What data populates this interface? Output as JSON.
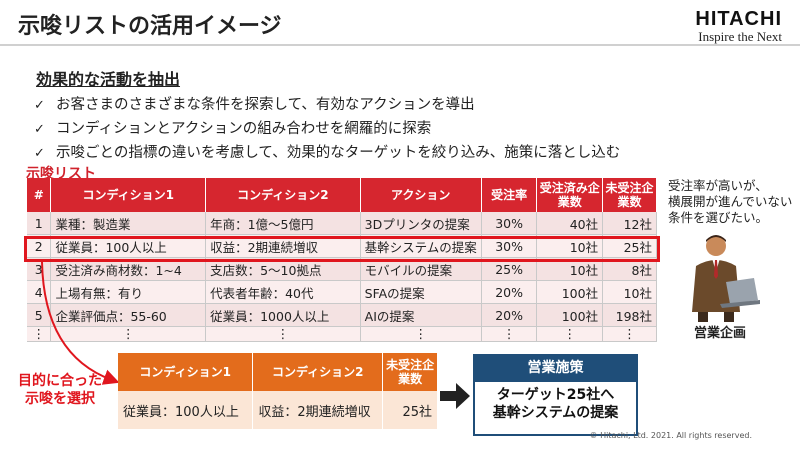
{
  "header": {
    "title": "示唆リストの活用イメージ",
    "logo_brand": "HITACHI",
    "logo_tagline": "Inspire the Next"
  },
  "section": {
    "heading": "効果的な活動を抽出",
    "bullets": [
      "お客さまのさまざまな条件を探索して、有効なアクションを導出",
      "コンディションとアクションの組み合わせを網羅的に探索",
      "示唆ごとの指標の違いを考慮して、効果的なターゲットを絞り込み、施策に落とし込む"
    ],
    "check_glyph": "✓"
  },
  "suggestion_list": {
    "label": "示唆リスト",
    "columns": [
      "#",
      "コンディション1",
      "コンディション2",
      "アクション",
      "受注率",
      "受注済み企業数",
      "未受注企業数"
    ],
    "rows": [
      {
        "no": "1",
        "cond1": "業種：製造業",
        "cond2": "年商：1億～5億円",
        "action": "3Dプリンタの提案",
        "rate": "30%",
        "won": "40社",
        "lost": "12社"
      },
      {
        "no": "2",
        "cond1": "従業員：100人以上",
        "cond2": "収益：2期連続増収",
        "action": "基幹システムの提案",
        "rate": "30%",
        "won": "10社",
        "lost": "25社"
      },
      {
        "no": "3",
        "cond1": "受注済み商材数：1~4",
        "cond2": "支店数：5～10拠点",
        "action": "モバイルの提案",
        "rate": "25%",
        "won": "10社",
        "lost": "8社"
      },
      {
        "no": "4",
        "cond1": "上場有無：有り",
        "cond2": "代表者年齢：40代",
        "action": "SFAの提案",
        "rate": "20%",
        "won": "100社",
        "lost": "10社"
      },
      {
        "no": "5",
        "cond1": "企業評価点：55-60",
        "cond2": "従業員：1000人以上",
        "action": "AIの提案",
        "rate": "20%",
        "won": "100社",
        "lost": "198社"
      },
      {
        "no": "⋮",
        "cond1": "⋮",
        "cond2": "⋮",
        "action": "⋮",
        "rate": "⋮",
        "won": "⋮",
        "lost": "⋮"
      }
    ]
  },
  "side_note": {
    "lines": [
      "受注率が高いが、",
      "横展開が進んでいない",
      "条件を選びたい。"
    ],
    "person_label": "営業企画"
  },
  "selection": {
    "label_lines": [
      "目的に合った",
      "示唆を選択"
    ],
    "columns": [
      "コンディション1",
      "コンディション2",
      "未受注企業数"
    ],
    "row": {
      "cond1": "従業員：100人以上",
      "cond2": "収益：2期連続増収",
      "lost": "25社"
    }
  },
  "measure": {
    "title": "営業施策",
    "body_lines": [
      "ターゲット25社へ",
      "基幹システムの提案"
    ]
  },
  "footer": {
    "copyright": "© Hitachi, Ltd. 2021. All rights reserved."
  },
  "colors": {
    "main_header": "#d6262f",
    "highlight": "#e0161e",
    "sub_header": "#e36c1c",
    "measure": "#1f4e79"
  }
}
